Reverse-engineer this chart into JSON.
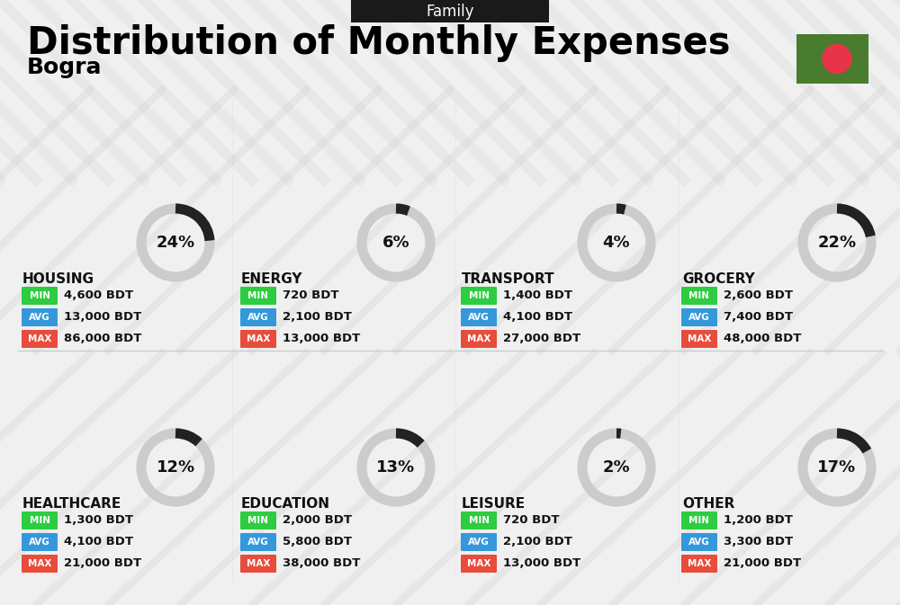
{
  "title": "Distribution of Monthly Expenses",
  "subtitle": "Family",
  "city": "Bogra",
  "background_color": "#f0f0f0",
  "header_bg": "#1a1a1a",
  "header_text_color": "#ffffff",
  "title_color": "#000000",
  "city_color": "#000000",
  "categories": [
    {
      "name": "HOUSING",
      "percent": 24,
      "min": "4,600 BDT",
      "avg": "13,000 BDT",
      "max": "86,000 BDT",
      "icon": "🏢",
      "row": 0,
      "col": 0
    },
    {
      "name": "ENERGY",
      "percent": 6,
      "min": "720 BDT",
      "avg": "2,100 BDT",
      "max": "13,000 BDT",
      "icon": "⚡",
      "row": 0,
      "col": 1
    },
    {
      "name": "TRANSPORT",
      "percent": 4,
      "min": "1,400 BDT",
      "avg": "4,100 BDT",
      "max": "27,000 BDT",
      "icon": "🚌",
      "row": 0,
      "col": 2
    },
    {
      "name": "GROCERY",
      "percent": 22,
      "min": "2,600 BDT",
      "avg": "7,400 BDT",
      "max": "48,000 BDT",
      "icon": "🛒",
      "row": 0,
      "col": 3
    },
    {
      "name": "HEALTHCARE",
      "percent": 12,
      "min": "1,300 BDT",
      "avg": "4,100 BDT",
      "max": "21,000 BDT",
      "icon": "❤",
      "row": 1,
      "col": 0
    },
    {
      "name": "EDUCATION",
      "percent": 13,
      "min": "2,000 BDT",
      "avg": "5,800 BDT",
      "max": "38,000 BDT",
      "icon": "🎓",
      "row": 1,
      "col": 1
    },
    {
      "name": "LEISURE",
      "percent": 2,
      "min": "720 BDT",
      "avg": "2,100 BDT",
      "max": "13,000 BDT",
      "icon": "🛍",
      "row": 1,
      "col": 2
    },
    {
      "name": "OTHER",
      "percent": 17,
      "min": "1,200 BDT",
      "avg": "3,300 BDT",
      "max": "21,000 BDT",
      "icon": "💰",
      "row": 1,
      "col": 3
    }
  ],
  "min_color": "#2ecc40",
  "avg_color": "#3498db",
  "max_color": "#e74c3c",
  "label_text_color": "#ffffff",
  "value_text_color": "#111111",
  "donut_filled_color": "#222222",
  "donut_empty_color": "#cccccc",
  "donut_text_color": "#111111",
  "flag_green": "#4a7c2f",
  "flag_red": "#e8344a"
}
